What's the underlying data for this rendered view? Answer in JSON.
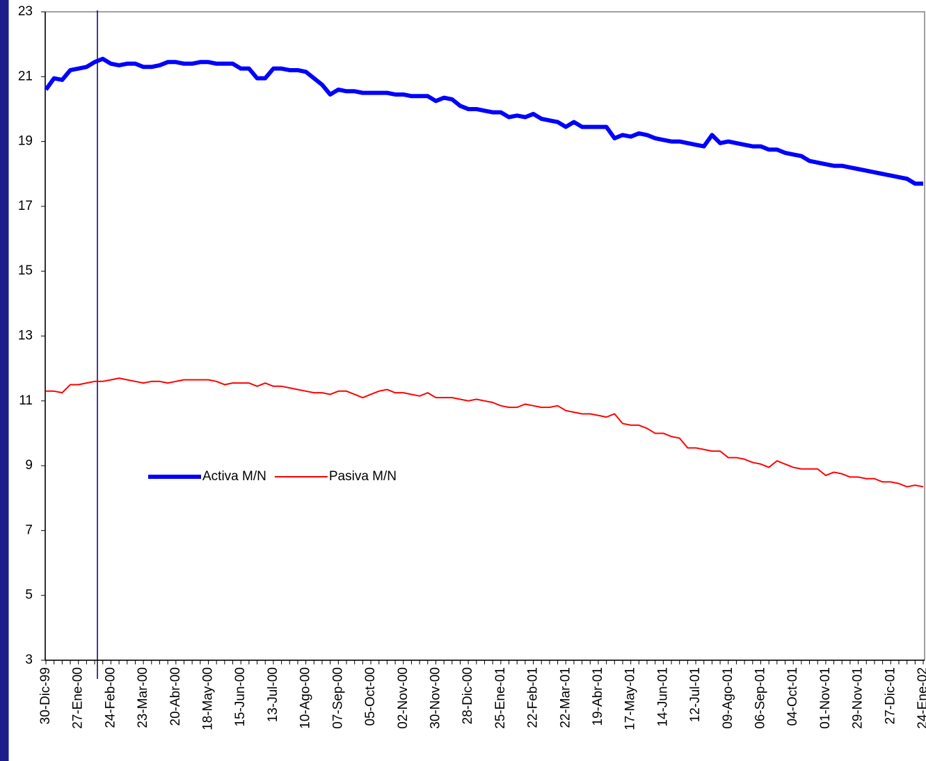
{
  "chart_data": {
    "type": "line",
    "categories": [
      "30-Dic-99",
      null,
      null,
      null,
      "27-Ene-00",
      null,
      null,
      null,
      "24-Feb-00",
      null,
      null,
      null,
      "23-Mar-00",
      null,
      null,
      null,
      "20-Abr-00",
      null,
      null,
      null,
      "18-May-00",
      null,
      null,
      null,
      "15-Jun-00",
      null,
      null,
      null,
      "13-Jul-00",
      null,
      null,
      null,
      "10-Ago-00",
      null,
      null,
      null,
      "07-Sep-00",
      null,
      null,
      null,
      "05-Oct-00",
      null,
      null,
      null,
      "02-Nov-00",
      null,
      null,
      null,
      "30-Nov-00",
      null,
      null,
      null,
      "28-Dic-00",
      null,
      null,
      null,
      "25-Ene-01",
      null,
      null,
      null,
      "22-Feb-01",
      null,
      null,
      null,
      "22-Mar-01",
      null,
      null,
      null,
      "19-Abr-01",
      null,
      null,
      null,
      "17-May-01",
      null,
      null,
      null,
      "14-Jun-01",
      null,
      null,
      null,
      "12-Jul-01",
      null,
      null,
      null,
      "09-Ago-01",
      null,
      null,
      null,
      "06-Sep-01",
      null,
      null,
      null,
      "04-Oct-01",
      null,
      null,
      null,
      "01-Nov-01",
      null,
      null,
      null,
      "29-Nov-01",
      null,
      null,
      null,
      "27-Dic-01",
      null,
      null,
      null,
      "24-Ene-02"
    ],
    "series": [
      {
        "name": "Activa M/N",
        "color": "#0000ff",
        "values": [
          20.6,
          20.95,
          20.9,
          21.2,
          21.25,
          21.3,
          21.45,
          21.55,
          21.4,
          21.35,
          21.4,
          21.4,
          21.3,
          21.3,
          21.35,
          21.45,
          21.45,
          21.4,
          21.4,
          21.45,
          21.45,
          21.4,
          21.4,
          21.4,
          21.25,
          21.25,
          20.95,
          20.95,
          21.25,
          21.25,
          21.2,
          21.2,
          21.15,
          20.95,
          20.75,
          20.45,
          20.6,
          20.55,
          20.55,
          20.5,
          20.5,
          20.5,
          20.5,
          20.45,
          20.45,
          20.4,
          20.4,
          20.4,
          20.25,
          20.35,
          20.3,
          20.1,
          20.0,
          20.0,
          19.95,
          19.9,
          19.9,
          19.75,
          19.8,
          19.75,
          19.85,
          19.7,
          19.65,
          19.6,
          19.45,
          19.6,
          19.45,
          19.45,
          19.45,
          19.45,
          19.1,
          19.2,
          19.15,
          19.25,
          19.2,
          19.1,
          19.05,
          19.0,
          19.0,
          18.95,
          18.9,
          18.85,
          19.2,
          18.95,
          19.0,
          18.95,
          18.9,
          18.85,
          18.85,
          18.75,
          18.75,
          18.65,
          18.6,
          18.55,
          18.4,
          18.35,
          18.3,
          18.25,
          18.25,
          18.2,
          18.15,
          18.1,
          18.05,
          18.0,
          17.95,
          17.9,
          17.85,
          17.7,
          17.7
        ]
      },
      {
        "name": "Pasiva M/N",
        "color": "#ff0000",
        "values": [
          11.3,
          11.3,
          11.25,
          11.5,
          11.5,
          11.55,
          11.6,
          11.6,
          11.65,
          11.7,
          11.65,
          11.6,
          11.55,
          11.6,
          11.6,
          11.55,
          11.6,
          11.65,
          11.65,
          11.65,
          11.65,
          11.6,
          11.5,
          11.55,
          11.55,
          11.55,
          11.45,
          11.55,
          11.45,
          11.45,
          11.4,
          11.35,
          11.3,
          11.25,
          11.25,
          11.2,
          11.3,
          11.3,
          11.2,
          11.1,
          11.2,
          11.3,
          11.35,
          11.25,
          11.25,
          11.2,
          11.15,
          11.25,
          11.1,
          11.1,
          11.1,
          11.05,
          11.0,
          11.05,
          11.0,
          10.95,
          10.85,
          10.8,
          10.8,
          10.9,
          10.85,
          10.8,
          10.8,
          10.85,
          10.7,
          10.65,
          10.6,
          10.6,
          10.55,
          10.5,
          10.6,
          10.3,
          10.25,
          10.25,
          10.15,
          10.0,
          10.0,
          9.9,
          9.85,
          9.55,
          9.55,
          9.5,
          9.45,
          9.45,
          9.25,
          9.25,
          9.2,
          9.1,
          9.05,
          8.95,
          9.15,
          9.05,
          8.95,
          8.9,
          8.9,
          8.9,
          8.7,
          8.8,
          8.75,
          8.65,
          8.65,
          8.6,
          8.6,
          8.5,
          8.5,
          8.45,
          8.35,
          8.4,
          8.35
        ]
      }
    ],
    "ylim": [
      3,
      23
    ],
    "yticks": [
      3,
      5,
      7,
      9,
      11,
      13,
      15,
      17,
      19,
      21,
      23
    ],
    "grid": false,
    "legend": "center-left"
  }
}
